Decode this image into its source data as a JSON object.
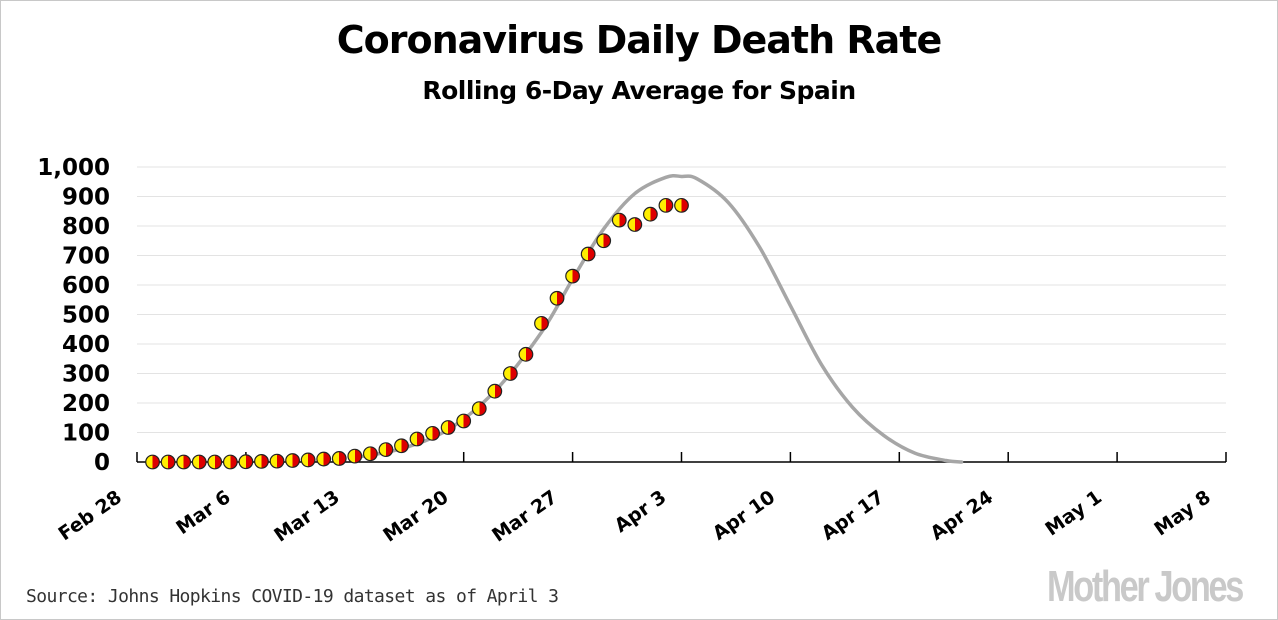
{
  "chart_data": {
    "type": "scatter",
    "title": "Coronavirus Daily Death Rate",
    "subtitle": "Rolling 6-Day Average for Spain",
    "xlabel": "",
    "ylabel": "",
    "ylim": [
      0,
      1000
    ],
    "yticks": [
      0,
      100,
      200,
      300,
      400,
      500,
      600,
      700,
      800,
      900,
      1000
    ],
    "ytick_labels": [
      "0",
      "100",
      "200",
      "300",
      "400",
      "500",
      "600",
      "700",
      "800",
      "900",
      "1,000"
    ],
    "x_start": "Feb 28",
    "xlim_days": [
      0,
      70
    ],
    "xtick_days": [
      0,
      7,
      14,
      21,
      28,
      35,
      42,
      49,
      56,
      63,
      70
    ],
    "xtick_labels": [
      "Feb 28",
      "Mar 6",
      "Mar 13",
      "Mar 20",
      "Mar 27",
      "Apr 3",
      "Apr 10",
      "Apr 17",
      "Apr 24",
      "May 1",
      "May 8"
    ],
    "grid": true,
    "series": [
      {
        "name": "Rolling 6-day average deaths",
        "kind": "points",
        "marker_colors": [
          "#ffee00",
          "#dd0000"
        ],
        "day_offset": 2,
        "values": [
          0,
          0,
          0,
          0,
          0,
          0,
          1,
          2,
          3,
          5,
          7,
          10,
          12,
          20,
          28,
          42,
          55,
          78,
          97,
          117,
          139,
          181,
          240,
          300,
          365,
          470,
          555,
          630,
          705,
          750,
          820,
          805,
          840,
          870,
          870
        ]
      },
      {
        "name": "Projected curve",
        "kind": "line",
        "color": "#a6a6a6",
        "x_days": [
          14,
          17,
          20,
          23,
          26,
          28,
          30,
          32,
          34,
          35,
          36,
          38,
          40,
          42,
          44,
          46,
          48,
          50,
          52,
          53
        ],
        "values": [
          15,
          45,
          110,
          240,
          440,
          620,
          790,
          910,
          965,
          968,
          960,
          880,
          730,
          530,
          330,
          185,
          90,
          30,
          5,
          0
        ]
      }
    ]
  },
  "footer": {
    "source": "Source: Johns Hopkins COVID-19 dataset as of April 3",
    "logo": "Mother Jones"
  }
}
